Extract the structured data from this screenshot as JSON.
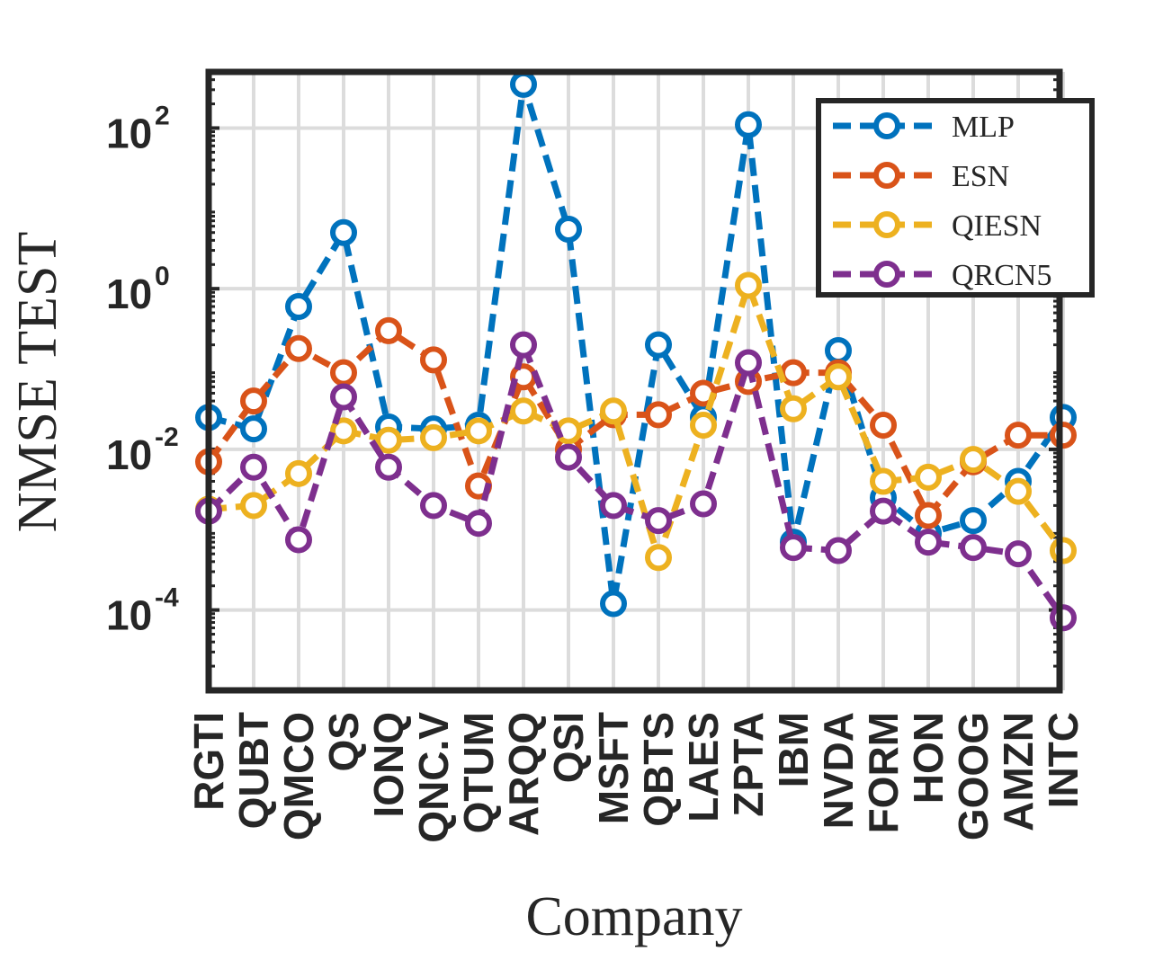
{
  "chart_data": {
    "type": "line",
    "xlabel": "Company",
    "ylabel": "NMSE TEST",
    "yscale": "log",
    "ylim": [
      1e-05,
      500
    ],
    "yticks": [
      {
        "base": "10",
        "exp": "2",
        "value": 100
      },
      {
        "base": "10",
        "exp": "0",
        "value": 1
      },
      {
        "base": "10",
        "exp": "-2",
        "value": 0.01
      },
      {
        "base": "10",
        "exp": "-4",
        "value": 0.0001
      }
    ],
    "grid": true,
    "legend_position": "top-right",
    "categories": [
      "RGTI",
      "QUBT",
      "QMCO",
      "QS",
      "IONQ",
      "QNC.V",
      "QTUM",
      "ARQQ",
      "QSI",
      "MSFT",
      "QBTS",
      "LAES",
      "ZPTA",
      "IBM",
      "NVDA",
      "FORM",
      "HON",
      "GOOG",
      "AMZN",
      "INTC"
    ],
    "series": [
      {
        "name": "MLP",
        "color": "#0072BD",
        "values": [
          0.025,
          0.018,
          0.6,
          5,
          0.019,
          0.018,
          0.02,
          350,
          5.5,
          0.00012,
          0.2,
          0.025,
          110,
          0.0007,
          0.17,
          0.0025,
          0.0009,
          0.0013,
          0.004,
          0.025
        ]
      },
      {
        "name": "ESN",
        "color": "#D95319",
        "values": [
          0.007,
          0.04,
          0.18,
          0.09,
          0.3,
          0.13,
          0.0035,
          0.08,
          0.01,
          0.027,
          0.027,
          0.05,
          0.07,
          0.09,
          0.09,
          0.02,
          0.0015,
          0.007,
          0.015,
          0.015
        ]
      },
      {
        "name": "QIESN",
        "color": "#EDB120",
        "values": [
          0.0018,
          0.002,
          0.005,
          0.017,
          0.013,
          0.014,
          0.017,
          0.03,
          0.017,
          0.03,
          0.00045,
          0.02,
          1.1,
          0.032,
          0.08,
          0.004,
          0.0045,
          0.0075,
          0.003,
          0.00055
        ]
      },
      {
        "name": "QRCN5",
        "color": "#7E2F8E",
        "values": [
          0.0017,
          0.006,
          0.00075,
          0.045,
          0.006,
          0.002,
          0.0012,
          0.2,
          0.008,
          0.002,
          0.0013,
          0.0021,
          0.12,
          0.0006,
          0.00055,
          0.0017,
          0.0007,
          0.0006,
          0.0005,
          8e-05
        ]
      }
    ]
  }
}
